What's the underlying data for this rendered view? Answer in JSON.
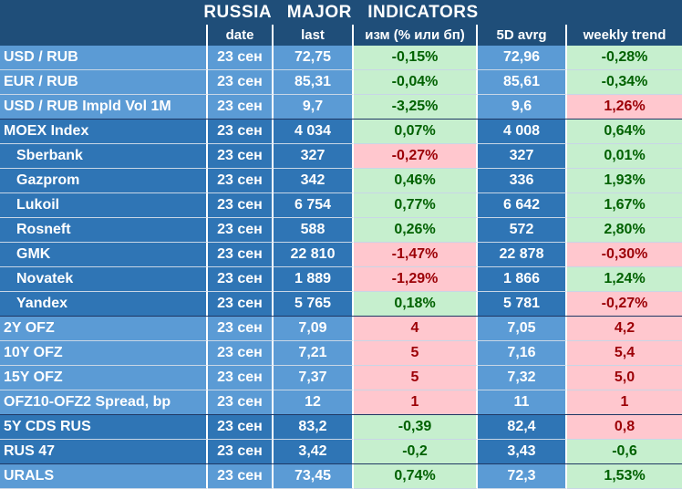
{
  "title": "RUSSIA   MAJOR   INDICATORS",
  "headers": {
    "name": "",
    "date": "date",
    "last": "last",
    "chg": "изм (% или бп)",
    "avg": "5D avrg",
    "wk": "weekly trend"
  },
  "colors": {
    "title_bg": "#1f4e79",
    "group_light": "#5b9bd5",
    "group_dark": "#2f75b5",
    "positive_bg": "#c6efce",
    "positive_text": "#006100",
    "negative_bg": "#ffc7ce",
    "negative_text": "#9c0006"
  },
  "rows": [
    {
      "name": "USD / RUB",
      "date": "23 сен",
      "last": "72,75",
      "chg": "-0,15%",
      "avg": "72,96",
      "wk": "-0,28%",
      "group": "light",
      "indent": false,
      "chg_tone": "pos",
      "wk_tone": "pos"
    },
    {
      "name": "EUR / RUB",
      "date": "23 сен",
      "last": "85,31",
      "chg": "-0,04%",
      "avg": "85,61",
      "wk": "-0,34%",
      "group": "light",
      "indent": false,
      "chg_tone": "pos",
      "wk_tone": "pos"
    },
    {
      "name": "USD / RUB Impld Vol 1M",
      "date": "23 сен",
      "last": "9,7",
      "chg": "-3,25%",
      "avg": "9,6",
      "wk": "1,26%",
      "group": "light",
      "indent": false,
      "chg_tone": "pos",
      "wk_tone": "neg"
    },
    {
      "name": "MOEX Index",
      "date": "23 сен",
      "last": "4 034",
      "chg": "0,07%",
      "avg": "4 008",
      "wk": "0,64%",
      "group": "dark",
      "indent": false,
      "chg_tone": "pos",
      "wk_tone": "pos"
    },
    {
      "name": "Sberbank",
      "date": "23 сен",
      "last": "327",
      "chg": "-0,27%",
      "avg": "327",
      "wk": "0,01%",
      "group": "dark",
      "indent": true,
      "chg_tone": "neg",
      "wk_tone": "pos"
    },
    {
      "name": "Gazprom",
      "date": "23 сен",
      "last": "342",
      "chg": "0,46%",
      "avg": "336",
      "wk": "1,93%",
      "group": "dark",
      "indent": true,
      "chg_tone": "pos",
      "wk_tone": "pos"
    },
    {
      "name": "Lukoil",
      "date": "23 сен",
      "last": "6 754",
      "chg": "0,77%",
      "avg": "6 642",
      "wk": "1,67%",
      "group": "dark",
      "indent": true,
      "chg_tone": "pos",
      "wk_tone": "pos"
    },
    {
      "name": "Rosneft",
      "date": "23 сен",
      "last": "588",
      "chg": "0,26%",
      "avg": "572",
      "wk": "2,80%",
      "group": "dark",
      "indent": true,
      "chg_tone": "pos",
      "wk_tone": "pos"
    },
    {
      "name": "GMK",
      "date": "23 сен",
      "last": "22 810",
      "chg": "-1,47%",
      "avg": "22 878",
      "wk": "-0,30%",
      "group": "dark",
      "indent": true,
      "chg_tone": "neg",
      "wk_tone": "neg"
    },
    {
      "name": "Novatek",
      "date": "23 сен",
      "last": "1 889",
      "chg": "-1,29%",
      "avg": "1 866",
      "wk": "1,24%",
      "group": "dark",
      "indent": true,
      "chg_tone": "neg",
      "wk_tone": "pos"
    },
    {
      "name": "Yandex",
      "date": "23 сен",
      "last": "5 765",
      "chg": "0,18%",
      "avg": "5 781",
      "wk": "-0,27%",
      "group": "dark",
      "indent": true,
      "chg_tone": "pos",
      "wk_tone": "neg"
    },
    {
      "name": "2Y OFZ",
      "date": "23 сен",
      "last": "7,09",
      "chg": "4",
      "avg": "7,05",
      "wk": "4,2",
      "group": "light",
      "indent": false,
      "chg_tone": "neg",
      "wk_tone": "neg"
    },
    {
      "name": "10Y OFZ",
      "date": "23 сен",
      "last": "7,21",
      "chg": "5",
      "avg": "7,16",
      "wk": "5,4",
      "group": "light",
      "indent": false,
      "chg_tone": "neg",
      "wk_tone": "neg"
    },
    {
      "name": "15Y OFZ",
      "date": "23 сен",
      "last": "7,37",
      "chg": "5",
      "avg": "7,32",
      "wk": "5,0",
      "group": "light",
      "indent": false,
      "chg_tone": "neg",
      "wk_tone": "neg"
    },
    {
      "name": "OFZ10-OFZ2 Spread, bp",
      "date": "23 сен",
      "last": "12",
      "chg": "1",
      "avg": "11",
      "wk": "1",
      "group": "light",
      "indent": false,
      "chg_tone": "neg",
      "wk_tone": "neg"
    },
    {
      "name": "5Y CDS RUS",
      "date": "23 сен",
      "last": "83,2",
      "chg": "-0,39",
      "avg": "82,4",
      "wk": "0,8",
      "group": "dark",
      "indent": false,
      "chg_tone": "pos",
      "wk_tone": "neg"
    },
    {
      "name": "RUS 47",
      "date": "23 сен",
      "last": "3,42",
      "chg": "-0,2",
      "avg": "3,43",
      "wk": "-0,6",
      "group": "dark",
      "indent": false,
      "chg_tone": "pos",
      "wk_tone": "pos"
    },
    {
      "name": "URALS",
      "date": "23 сен",
      "last": "73,45",
      "chg": "0,74%",
      "avg": "72,3",
      "wk": "1,53%",
      "group": "light",
      "indent": false,
      "chg_tone": "pos",
      "wk_tone": "pos"
    }
  ]
}
